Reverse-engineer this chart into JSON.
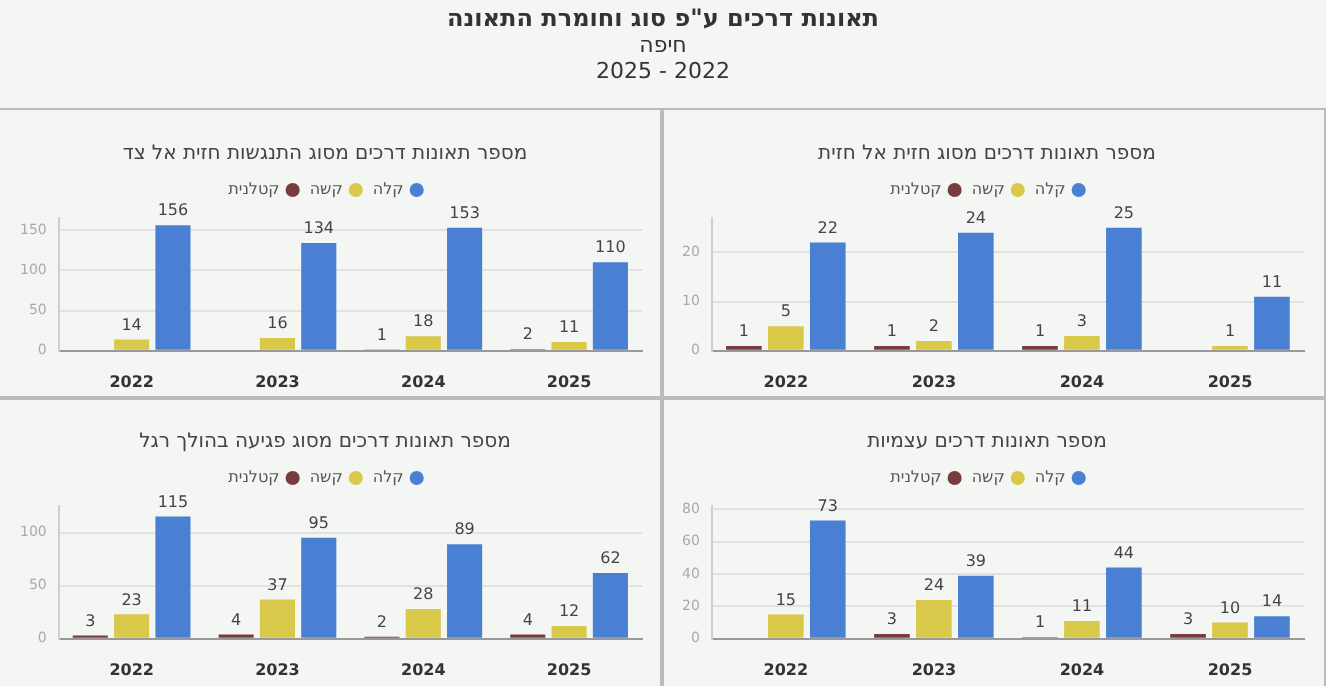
{
  "chart_data": [
    {
      "type": "other",
      "title": "תאונות דרכים ע\"פ סוג וחומרת התאונה",
      "subtitle": "חיפה",
      "annotations": [
        "2025 - 2022"
      ]
    },
    {
      "type": "bar",
      "title": "מספר תאונות דרכים מסוג התנגשות חזית אל צד",
      "categories": [
        "2022",
        "2023",
        "2024",
        "2025"
      ],
      "series": [
        {
          "name": "קטלנית",
          "color": "#7a3b3f",
          "values": [
            null,
            null,
            1,
            2
          ]
        },
        {
          "name": "קשה",
          "color": "#d9c84a",
          "values": [
            14,
            16,
            18,
            11
          ]
        },
        {
          "name": "קלה",
          "color": "#4a80d4",
          "values": [
            156,
            134,
            153,
            110
          ]
        }
      ],
      "ylim": [
        0,
        165
      ],
      "yticks": [
        0,
        50,
        100,
        150
      ],
      "grid": "y",
      "legend": "top",
      "data_labels": true
    },
    {
      "type": "bar",
      "title": "מספר תאונות דרכים מסוג חזית אל חזית",
      "categories": [
        "2022",
        "2023",
        "2024",
        "2025"
      ],
      "series": [
        {
          "name": "קטלנית",
          "color": "#7a3b3f",
          "values": [
            1,
            1,
            1,
            null
          ]
        },
        {
          "name": "קשה",
          "color": "#d9c84a",
          "values": [
            5,
            2,
            3,
            1
          ]
        },
        {
          "name": "קלה",
          "color": "#4a80d4",
          "values": [
            22,
            24,
            25,
            11
          ]
        }
      ],
      "ylim": [
        0,
        27
      ],
      "yticks": [
        0,
        10,
        20
      ],
      "grid": "y",
      "legend": "top",
      "data_labels": true
    },
    {
      "type": "bar",
      "title": "מספר תאונות דרכים מסוג פגיעה בהולך רגל",
      "categories": [
        "2022",
        "2023",
        "2024",
        "2025"
      ],
      "series": [
        {
          "name": "קטלנית",
          "color": "#7a3b3f",
          "values": [
            3,
            4,
            2,
            4
          ]
        },
        {
          "name": "קשה",
          "color": "#d9c84a",
          "values": [
            23,
            37,
            28,
            12
          ]
        },
        {
          "name": "קלה",
          "color": "#4a80d4",
          "values": [
            115,
            95,
            89,
            62
          ]
        }
      ],
      "ylim": [
        0,
        125
      ],
      "yticks": [
        0,
        50,
        100
      ],
      "grid": "y",
      "legend": "top",
      "data_labels": true
    },
    {
      "type": "bar",
      "title": "מספר תאונות דרכים עצמיות",
      "categories": [
        "2022",
        "2023",
        "2024",
        "2025"
      ],
      "series": [
        {
          "name": "קטלנית",
          "color": "#7a3b3f",
          "values": [
            null,
            3,
            1,
            3
          ]
        },
        {
          "name": "קשה",
          "color": "#d9c84a",
          "values": [
            15,
            24,
            11,
            10
          ]
        },
        {
          "name": "קלה",
          "color": "#4a80d4",
          "values": [
            73,
            39,
            44,
            14
          ]
        }
      ],
      "ylim": [
        0,
        82
      ],
      "yticks": [
        0,
        20,
        40,
        60,
        80
      ],
      "grid": "y",
      "legend": "top",
      "data_labels": true
    }
  ]
}
